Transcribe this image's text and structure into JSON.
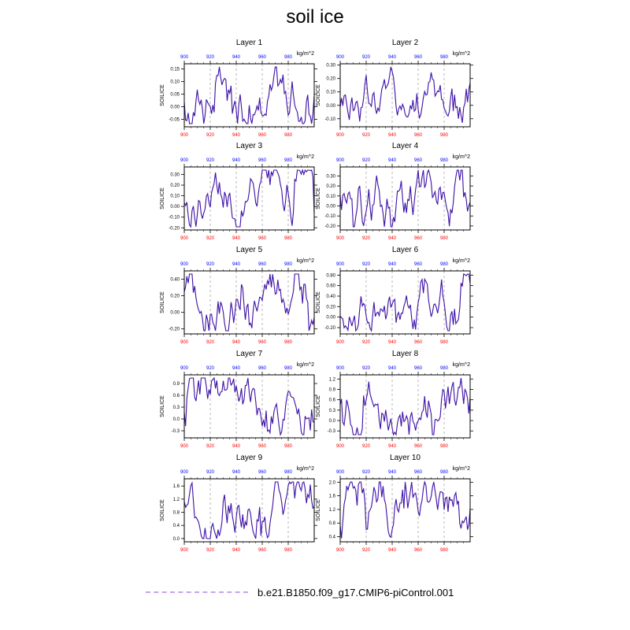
{
  "title": "soil ice",
  "legend": {
    "label": "b.e21.B1850.f09_g17.CMIP6-piControl.001",
    "color": "#c9a3f0"
  },
  "colors": {
    "line": "#4b0082",
    "line2": "#1e3cff",
    "top_ticks": "#0000ff",
    "bottom_ticks": "#ff0000",
    "axis": "#000000",
    "dash": "#888888"
  },
  "chart_data": [
    {
      "type": "line",
      "title": "Layer 1",
      "ylabel": "SOILICE",
      "units": "kg/m^2",
      "xlim": [
        900,
        1000
      ],
      "ylim": [
        -0.08,
        0.17
      ],
      "xticks": [
        900,
        920,
        940,
        960,
        980
      ],
      "yticks": [
        -0.05,
        0.0,
        0.05,
        0.1,
        0.15
      ],
      "ytick_labels": [
        "-0.05",
        "0.00",
        "0.05",
        "0.10",
        "0.15"
      ]
    },
    {
      "type": "line",
      "title": "Layer 2",
      "ylabel": "SOILICE",
      "units": "kg/m^2",
      "xlim": [
        900,
        1000
      ],
      "ylim": [
        -0.16,
        0.31
      ],
      "xticks": [
        900,
        920,
        940,
        960,
        980
      ],
      "yticks": [
        -0.1,
        0.0,
        0.1,
        0.2,
        0.3
      ],
      "ytick_labels": [
        "-0.10",
        "0.00",
        "0.10",
        "0.20",
        "0.30"
      ]
    },
    {
      "type": "line",
      "title": "Layer 3",
      "ylabel": "SOILICE",
      "units": "kg/m^2",
      "xlim": [
        900,
        1000
      ],
      "ylim": [
        -0.22,
        0.37
      ],
      "xticks": [
        900,
        920,
        940,
        960,
        980
      ],
      "yticks": [
        -0.2,
        -0.1,
        0.0,
        0.1,
        0.2,
        0.3
      ],
      "ytick_labels": [
        "-0.20",
        "-0.10",
        "0.00",
        "0.10",
        "0.20",
        "0.30"
      ]
    },
    {
      "type": "line",
      "title": "Layer 4",
      "ylabel": "SOILICE",
      "units": "kg/m^2",
      "xlim": [
        900,
        1000
      ],
      "ylim": [
        -0.24,
        0.39
      ],
      "xticks": [
        900,
        920,
        940,
        960,
        980
      ],
      "yticks": [
        -0.2,
        -0.1,
        0.0,
        0.1,
        0.2,
        0.3
      ],
      "ytick_labels": [
        "-0.20",
        "-0.10",
        "0.00",
        "0.10",
        "0.20",
        "0.30"
      ]
    },
    {
      "type": "line",
      "title": "Layer 5",
      "ylabel": "SOILICE",
      "units": "kg/m^2",
      "xlim": [
        900,
        1000
      ],
      "ylim": [
        -0.26,
        0.5
      ],
      "xticks": [
        900,
        920,
        940,
        960,
        980
      ],
      "yticks": [
        -0.2,
        0.0,
        0.2,
        0.4
      ],
      "ytick_labels": [
        "-0.20",
        "0.00",
        "0.20",
        "0.40"
      ]
    },
    {
      "type": "line",
      "title": "Layer 6",
      "ylabel": "SOILICE",
      "units": "kg/m^2",
      "xlim": [
        900,
        1000
      ],
      "ylim": [
        -0.32,
        0.88
      ],
      "xticks": [
        900,
        920,
        940,
        960,
        980
      ],
      "yticks": [
        -0.2,
        0.0,
        0.2,
        0.4,
        0.6,
        0.8
      ],
      "ytick_labels": [
        "-0.20",
        "0.00",
        "0.20",
        "0.40",
        "0.60",
        "0.80"
      ]
    },
    {
      "type": "line",
      "title": "Layer 7",
      "ylabel": "SOILICE",
      "units": "kg/m^2",
      "xlim": [
        900,
        1000
      ],
      "ylim": [
        -0.48,
        1.12
      ],
      "xticks": [
        900,
        920,
        940,
        960,
        980
      ],
      "yticks": [
        -0.3,
        0.0,
        0.3,
        0.6,
        0.9
      ],
      "ytick_labels": [
        "-0.3",
        "0.0",
        "0.3",
        "0.6",
        "0.9"
      ]
    },
    {
      "type": "line",
      "title": "Layer 8",
      "ylabel": "SOILICE",
      "units": "kg/m^2",
      "xlim": [
        900,
        1000
      ],
      "ylim": [
        -0.5,
        1.32
      ],
      "xticks": [
        900,
        920,
        940,
        960,
        980
      ],
      "yticks": [
        -0.3,
        0.0,
        0.3,
        0.6,
        0.9,
        1.2
      ],
      "ytick_labels": [
        "-0.3",
        "0.0",
        "0.3",
        "0.6",
        "0.9",
        "1.2"
      ]
    },
    {
      "type": "line",
      "title": "Layer 9",
      "ylabel": "SOILICE",
      "units": "kg/m^2",
      "xlim": [
        900,
        1000
      ],
      "ylim": [
        -0.1,
        1.82
      ],
      "xticks": [
        900,
        920,
        940,
        960,
        980
      ],
      "yticks": [
        0.0,
        0.4,
        0.8,
        1.2,
        1.6
      ],
      "ytick_labels": [
        "0.0",
        "0.4",
        "0.8",
        "1.2",
        "1.6"
      ]
    },
    {
      "type": "line",
      "title": "Layer 10",
      "ylabel": "SOILICE",
      "units": "kg/m^2",
      "xlim": [
        900,
        1000
      ],
      "ylim": [
        0.25,
        2.1
      ],
      "xticks": [
        900,
        920,
        940,
        960,
        980
      ],
      "yticks": [
        0.4,
        0.8,
        1.2,
        1.6,
        2.0
      ],
      "ytick_labels": [
        "0.4",
        "0.8",
        "1.2",
        "1.6",
        "2.0"
      ]
    }
  ]
}
